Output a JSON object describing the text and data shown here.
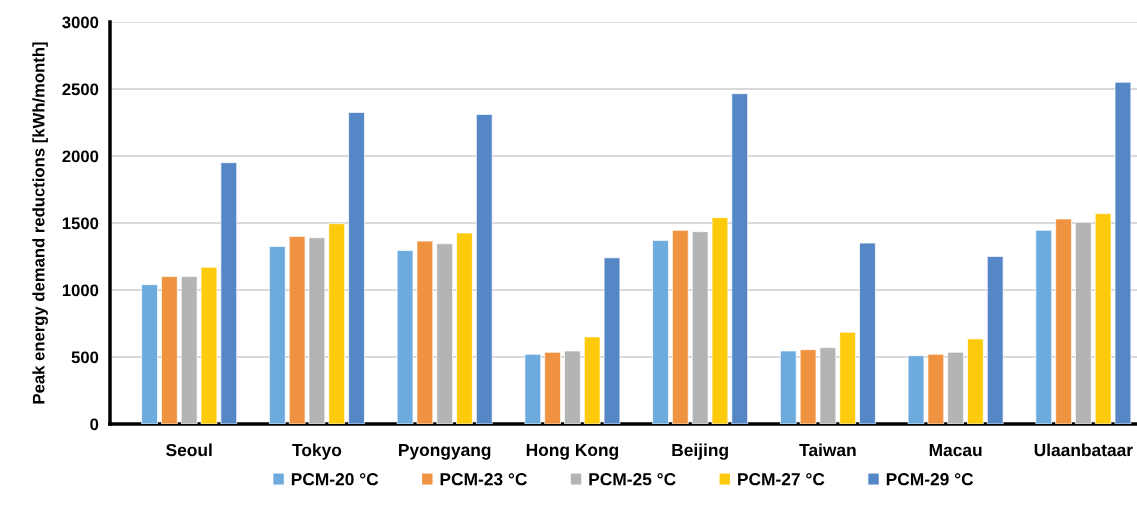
{
  "chart_data": {
    "type": "bar",
    "ylabel": "Peak energy demand reductions [kWh/month]",
    "categories": [
      "Seoul",
      "Tokyo",
      "Pyongyang",
      "Hong Kong",
      "Beijing",
      "Taiwan",
      "Macau",
      "Ulaanbataar"
    ],
    "series": [
      {
        "name": "PCM-20 °C",
        "color": "#6daadd",
        "values": [
          1040,
          1325,
          1295,
          520,
          1370,
          545,
          510,
          1445
        ]
      },
      {
        "name": "PCM-23 °C",
        "color": "#f09340",
        "values": [
          1100,
          1400,
          1365,
          535,
          1445,
          555,
          520,
          1530
        ]
      },
      {
        "name": "PCM-25 °C",
        "color": "#b4b4b4",
        "values": [
          1100,
          1390,
          1345,
          545,
          1435,
          570,
          535,
          1505
        ]
      },
      {
        "name": "PCM-27 °C",
        "color": "#fecb0c",
        "values": [
          1170,
          1495,
          1425,
          650,
          1540,
          685,
          635,
          1570
        ]
      },
      {
        "name": "PCM-29 °C",
        "color": "#5586c6",
        "values": [
          1950,
          2325,
          2310,
          1240,
          2465,
          1350,
          1250,
          2550
        ]
      }
    ],
    "ylim": [
      0,
      3000
    ],
    "yticks": [
      0,
      500,
      1000,
      1500,
      2000,
      2500,
      3000
    ],
    "grid": "y",
    "legend": "bottom"
  }
}
